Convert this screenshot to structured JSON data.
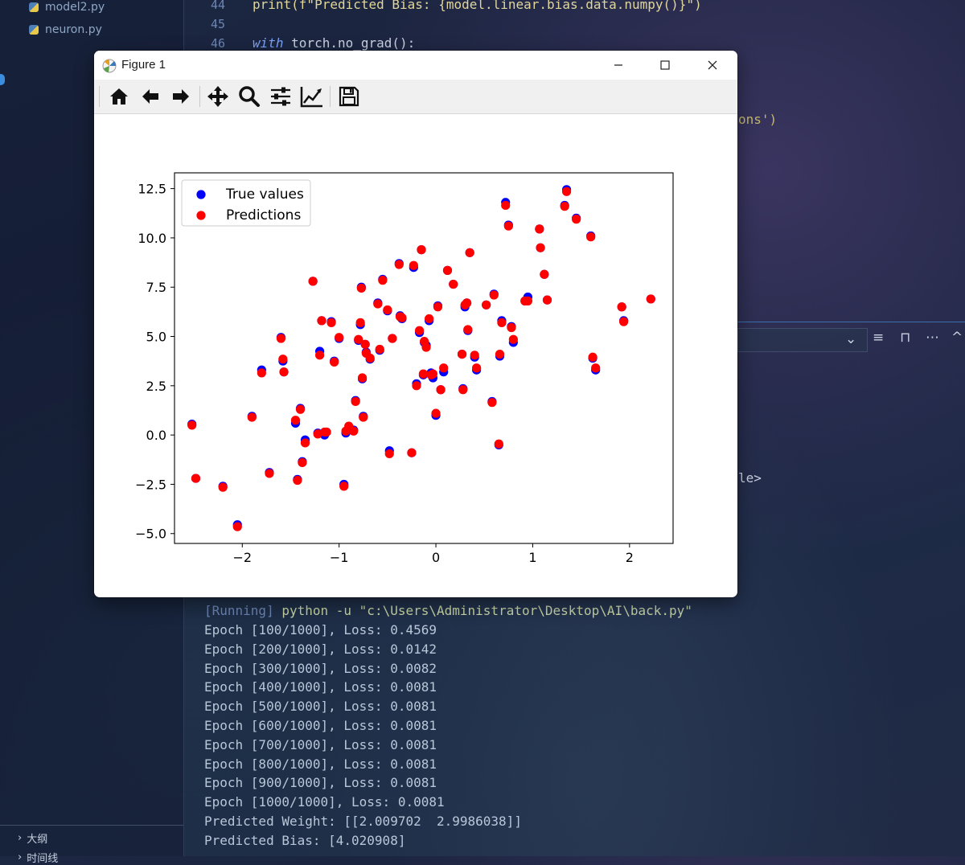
{
  "explorer": {
    "files": [
      {
        "name": "model2.py",
        "icon": "python-file-icon"
      },
      {
        "name": "neuron.py",
        "icon": "python-file-icon"
      }
    ],
    "outline_label": "大纲",
    "timeline_label": "时间线"
  },
  "editor": {
    "lines": [
      {
        "number": "44",
        "code": "print(f\"Predicted Bias: {model.linear.bias.data.numpy()}\")"
      },
      {
        "number": "45",
        "code": ""
      },
      {
        "number": "46",
        "kw": "with",
        "code": " torch.no_grad():"
      }
    ],
    "fragment_legend": "ons')",
    "fragment_label": "le>"
  },
  "figure": {
    "title": "Figure 1",
    "toolbar": [
      {
        "name": "home-icon",
        "tooltip": "Reset original view"
      },
      {
        "name": "back-arrow-icon",
        "tooltip": "Back"
      },
      {
        "name": "forward-arrow-icon",
        "tooltip": "Forward"
      },
      {
        "name": "pan-icon",
        "tooltip": "Pan"
      },
      {
        "name": "zoom-icon",
        "tooltip": "Zoom"
      },
      {
        "name": "subplots-icon",
        "tooltip": "Configure subplots"
      },
      {
        "name": "edit-axis-icon",
        "tooltip": "Edit axis"
      },
      {
        "name": "save-icon",
        "tooltip": "Save"
      }
    ]
  },
  "terminal": {
    "running_tag": "[Running]",
    "command": "python -u \"c:\\Users\\Administrator\\Desktop\\AI\\back.py\"",
    "lines": [
      "Epoch [100/1000], Loss: 0.4569",
      "Epoch [200/1000], Loss: 0.0142",
      "Epoch [300/1000], Loss: 0.0082",
      "Epoch [400/1000], Loss: 0.0081",
      "Epoch [500/1000], Loss: 0.0081",
      "Epoch [600/1000], Loss: 0.0081",
      "Epoch [700/1000], Loss: 0.0081",
      "Epoch [800/1000], Loss: 0.0081",
      "Epoch [900/1000], Loss: 0.0081",
      "Epoch [1000/1000], Loss: 0.0081",
      "Predicted Weight: [[2.009702  2.9986038]]",
      "Predicted Bias: [4.020908]"
    ]
  },
  "chart_data": {
    "type": "scatter",
    "title": "",
    "xlabel": "",
    "ylabel": "",
    "xlim": [
      -2.7,
      2.45
    ],
    "ylim": [
      -5.5,
      13.3
    ],
    "xticks": [
      -2,
      -1,
      0,
      1,
      2
    ],
    "yticks": [
      -5.0,
      -2.5,
      0.0,
      2.5,
      5.0,
      7.5,
      10.0,
      12.5
    ],
    "legend_position": "top-left",
    "series": [
      {
        "name": "True values",
        "color": "#0000ff",
        "x": [
          -2.52,
          -2.48,
          -2.2,
          -2.05,
          -1.9,
          -1.8,
          -1.72,
          -1.6,
          -1.58,
          -1.57,
          -1.45,
          -1.43,
          -1.4,
          -1.38,
          -1.35,
          -1.27,
          -1.22,
          -1.2,
          -1.18,
          -1.15,
          -1.13,
          -1.08,
          -1.05,
          -1.0,
          -0.95,
          -0.93,
          -0.9,
          -0.85,
          -0.83,
          -0.8,
          -0.78,
          -0.77,
          -0.76,
          -0.75,
          -0.73,
          -0.72,
          -0.68,
          -0.6,
          -0.58,
          -0.55,
          -0.5,
          -0.48,
          -0.45,
          -0.38,
          -0.37,
          -0.35,
          -0.25,
          -0.23,
          -0.2,
          -0.17,
          -0.15,
          -0.13,
          -0.12,
          -0.1,
          -0.07,
          -0.05,
          -0.03,
          0.0,
          0.02,
          0.05,
          0.08,
          0.12,
          0.18,
          0.27,
          0.28,
          0.3,
          0.32,
          0.33,
          0.35,
          0.4,
          0.42,
          0.52,
          0.58,
          0.6,
          0.65,
          0.66,
          0.68,
          0.72,
          0.75,
          0.78,
          0.8,
          0.92,
          0.95,
          1.07,
          1.08,
          1.12,
          1.15,
          1.33,
          1.35,
          1.45,
          1.6,
          1.62,
          1.65,
          1.92,
          1.94,
          2.22
        ],
        "y": [
          0.55,
          -2.2,
          -2.6,
          -4.55,
          0.95,
          3.3,
          -1.9,
          4.95,
          3.75,
          3.2,
          0.6,
          -2.25,
          1.35,
          -1.35,
          -0.25,
          7.8,
          0.1,
          4.25,
          5.8,
          0.0,
          0.15,
          5.75,
          3.75,
          4.9,
          -2.5,
          0.1,
          0.35,
          0.25,
          1.75,
          4.8,
          5.6,
          7.5,
          2.85,
          0.95,
          4.6,
          4.2,
          3.85,
          6.7,
          4.3,
          7.9,
          6.3,
          -0.8,
          4.9,
          8.7,
          6.05,
          5.9,
          -0.9,
          8.5,
          2.6,
          5.2,
          9.4,
          3.05,
          4.7,
          4.55,
          5.8,
          3.15,
          2.9,
          1.0,
          6.55,
          2.3,
          3.2,
          8.35,
          7.65,
          4.1,
          2.35,
          6.5,
          6.7,
          5.3,
          9.25,
          3.95,
          3.3,
          6.6,
          1.7,
          7.15,
          -0.5,
          4.0,
          5.8,
          11.8,
          10.65,
          5.5,
          4.7,
          6.8,
          7.0,
          10.45,
          9.5,
          8.15,
          6.85,
          11.65,
          12.45,
          11.0,
          10.1,
          3.9,
          3.3,
          6.5,
          5.8,
          6.9
        ]
      },
      {
        "name": "Predictions",
        "color": "#ff0000",
        "x": [
          -2.52,
          -2.48,
          -2.2,
          -2.05,
          -1.9,
          -1.8,
          -1.72,
          -1.6,
          -1.58,
          -1.57,
          -1.45,
          -1.43,
          -1.4,
          -1.38,
          -1.35,
          -1.27,
          -1.22,
          -1.2,
          -1.18,
          -1.15,
          -1.13,
          -1.08,
          -1.05,
          -1.0,
          -0.95,
          -0.93,
          -0.9,
          -0.85,
          -0.83,
          -0.8,
          -0.78,
          -0.77,
          -0.76,
          -0.75,
          -0.73,
          -0.72,
          -0.68,
          -0.6,
          -0.58,
          -0.55,
          -0.5,
          -0.48,
          -0.45,
          -0.38,
          -0.37,
          -0.35,
          -0.25,
          -0.23,
          -0.2,
          -0.17,
          -0.15,
          -0.13,
          -0.12,
          -0.1,
          -0.07,
          -0.05,
          -0.03,
          0.0,
          0.02,
          0.05,
          0.08,
          0.12,
          0.18,
          0.27,
          0.28,
          0.3,
          0.32,
          0.33,
          0.35,
          0.4,
          0.42,
          0.52,
          0.58,
          0.6,
          0.65,
          0.66,
          0.68,
          0.72,
          0.75,
          0.78,
          0.8,
          0.92,
          0.95,
          1.07,
          1.08,
          1.12,
          1.15,
          1.33,
          1.35,
          1.45,
          1.6,
          1.62,
          1.65,
          1.92,
          1.94,
          2.22
        ],
        "y": [
          0.5,
          -2.2,
          -2.65,
          -4.65,
          0.9,
          3.15,
          -1.95,
          4.9,
          3.85,
          3.2,
          0.75,
          -2.3,
          1.3,
          -1.4,
          -0.4,
          7.8,
          0.05,
          4.05,
          5.8,
          0.15,
          0.15,
          5.7,
          3.7,
          4.95,
          -2.6,
          0.2,
          0.45,
          0.2,
          1.7,
          4.85,
          5.7,
          7.45,
          2.9,
          0.9,
          4.6,
          4.15,
          3.9,
          6.65,
          4.35,
          7.85,
          6.35,
          -0.95,
          4.9,
          8.65,
          6.0,
          5.95,
          -0.9,
          8.6,
          2.5,
          5.3,
          9.4,
          3.1,
          4.75,
          4.45,
          5.9,
          3.05,
          3.1,
          1.1,
          6.5,
          2.3,
          3.4,
          8.35,
          7.65,
          4.1,
          2.3,
          6.6,
          6.7,
          5.35,
          9.25,
          4.05,
          3.4,
          6.6,
          1.65,
          7.1,
          -0.45,
          4.1,
          5.7,
          11.65,
          10.6,
          5.45,
          4.85,
          6.8,
          6.8,
          10.45,
          9.5,
          8.15,
          6.85,
          11.6,
          12.35,
          10.95,
          10.05,
          3.95,
          3.4,
          6.5,
          5.75,
          6.9
        ]
      }
    ]
  }
}
